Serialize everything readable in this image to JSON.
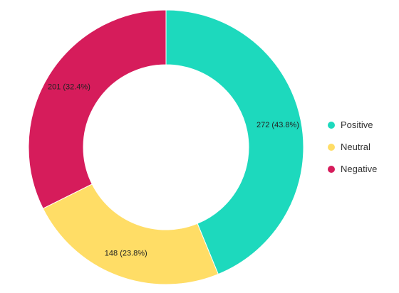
{
  "chart_data": {
    "type": "pie",
    "variant": "donut",
    "title": "",
    "slices": [
      {
        "name": "Positive",
        "value": 272,
        "percent": 43.8,
        "label": "272 (43.8%)",
        "color": "#1dd9bd"
      },
      {
        "name": "Neutral",
        "value": 148,
        "percent": 23.8,
        "label": "148 (23.8%)",
        "color": "#ffdd66"
      },
      {
        "name": "Negative",
        "value": 201,
        "percent": 32.4,
        "label": "201 (32.4%)",
        "color": "#d61c5b"
      }
    ],
    "legend": {
      "position": "right"
    }
  }
}
